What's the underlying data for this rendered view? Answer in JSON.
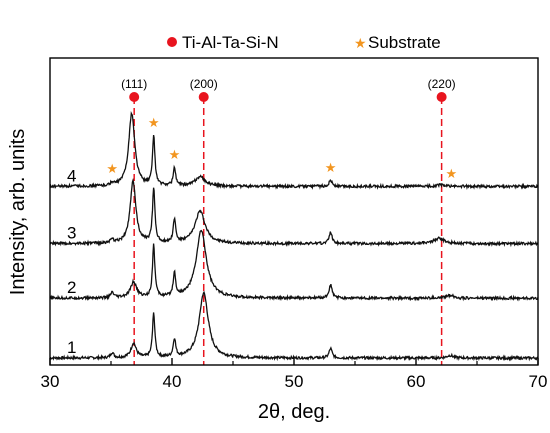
{
  "chart_data": {
    "type": "line",
    "title": "",
    "xlabel": "2θ, deg.",
    "ylabel": "Intensity, arb. units",
    "xlim": [
      30,
      70
    ],
    "x_ticks": [
      30,
      40,
      50,
      60,
      70
    ],
    "y_ticks_shown": false,
    "grid": false,
    "legend": {
      "placement": "top",
      "entries": [
        {
          "label": "Ti-Al-Ta-Si-N",
          "marker": "circle",
          "color": "#e8141e"
        },
        {
          "label": "Substrate",
          "marker": "star",
          "color": "#f2951f"
        }
      ]
    },
    "reference_lines": [
      {
        "x": 36.9,
        "label": "(111)",
        "color": "#e8141e"
      },
      {
        "x": 42.6,
        "label": "(200)",
        "color": "#e8141e"
      },
      {
        "x": 62.1,
        "label": "(220)",
        "color": "#e8141e"
      }
    ],
    "substrate_markers": [
      35.1,
      38.5,
      40.2,
      53.0,
      62.9
    ],
    "series": [
      {
        "name": "1",
        "baseline": 0.0,
        "peaks": [
          {
            "x": 35.1,
            "height": 0.1,
            "width": 0.15
          },
          {
            "x": 36.85,
            "height": 0.28,
            "width": 0.25
          },
          {
            "x": 38.5,
            "height": 0.85,
            "width": 0.12
          },
          {
            "x": 40.2,
            "height": 0.35,
            "width": 0.12
          },
          {
            "x": 42.6,
            "height": 1.25,
            "width": 0.45
          },
          {
            "x": 53.0,
            "height": 0.18,
            "width": 0.15
          },
          {
            "x": 62.8,
            "height": 0.05,
            "width": 0.3
          }
        ]
      },
      {
        "name": "2",
        "baseline": 1.15,
        "peaks": [
          {
            "x": 35.1,
            "height": 0.1,
            "width": 0.15
          },
          {
            "x": 36.85,
            "height": 0.3,
            "width": 0.3
          },
          {
            "x": 38.5,
            "height": 1.0,
            "width": 0.12
          },
          {
            "x": 40.2,
            "height": 0.45,
            "width": 0.12
          },
          {
            "x": 42.4,
            "height": 1.3,
            "width": 0.5
          },
          {
            "x": 53.0,
            "height": 0.25,
            "width": 0.15
          },
          {
            "x": 62.8,
            "height": 0.06,
            "width": 0.35
          }
        ]
      },
      {
        "name": "3",
        "baseline": 2.2,
        "peaks": [
          {
            "x": 35.1,
            "height": 0.06,
            "width": 0.15
          },
          {
            "x": 36.8,
            "height": 1.2,
            "width": 0.28
          },
          {
            "x": 38.5,
            "height": 1.05,
            "width": 0.12
          },
          {
            "x": 40.2,
            "height": 0.45,
            "width": 0.12
          },
          {
            "x": 42.3,
            "height": 0.62,
            "width": 0.5
          },
          {
            "x": 53.0,
            "height": 0.22,
            "width": 0.15
          },
          {
            "x": 61.9,
            "height": 0.1,
            "width": 0.5
          }
        ]
      },
      {
        "name": "4",
        "baseline": 3.3,
        "peaks": [
          {
            "x": 35.1,
            "height": 0.05,
            "width": 0.15
          },
          {
            "x": 36.7,
            "height": 1.4,
            "width": 0.3
          },
          {
            "x": 38.5,
            "height": 0.95,
            "width": 0.12
          },
          {
            "x": 40.2,
            "height": 0.35,
            "width": 0.12
          },
          {
            "x": 42.3,
            "height": 0.18,
            "width": 0.5
          },
          {
            "x": 53.0,
            "height": 0.12,
            "width": 0.15
          },
          {
            "x": 62.0,
            "height": 0.03,
            "width": 0.4
          }
        ]
      }
    ]
  }
}
